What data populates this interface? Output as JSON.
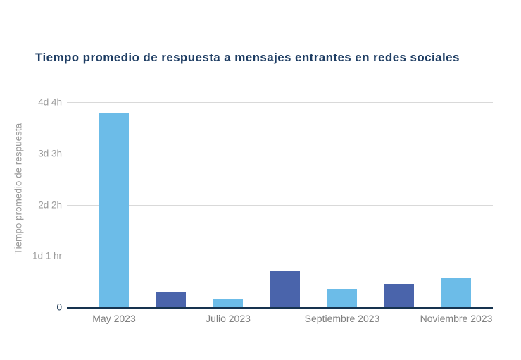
{
  "chart_data": {
    "type": "bar",
    "title": "Tiempo promedio de respuesta a mensajes entrantes en redes sociales",
    "ylabel": "Tiempo promedio de respuesta",
    "unit": "hours",
    "ylim": [
      0,
      100
    ],
    "grid": "horizontal",
    "legend": null,
    "y_ticks": [
      {
        "label": "4d 4h",
        "hours": 100
      },
      {
        "label": "3d 3h",
        "hours": 75
      },
      {
        "label": "2d 2h",
        "hours": 50
      },
      {
        "label": "1d 1 hr",
        "hours": 25
      },
      {
        "label": "0",
        "hours": 0
      }
    ],
    "bars": [
      {
        "axis_label": "May 2023",
        "hours": 95,
        "palette": "light"
      },
      {
        "axis_label": "",
        "hours": 7.5,
        "palette": "dark"
      },
      {
        "axis_label": "Julio 2023",
        "hours": 4,
        "palette": "light"
      },
      {
        "axis_label": "",
        "hours": 17.5,
        "palette": "dark"
      },
      {
        "axis_label": "Septiembre 2023",
        "hours": 9,
        "palette": "light"
      },
      {
        "axis_label": "",
        "hours": 11.5,
        "palette": "dark"
      },
      {
        "axis_label": "Noviembre 2023",
        "hours": 14,
        "palette": "light"
      }
    ],
    "colors": {
      "bar_light": "#6cbce8",
      "bar_dark": "#4a64ab",
      "title": "#1e3d63",
      "axis_line": "#16334f",
      "gridline": "#d9d9d9",
      "tick_label": "#9b9b9b",
      "x_label": "#7f7f7f",
      "zero_label": "#16334f"
    }
  }
}
